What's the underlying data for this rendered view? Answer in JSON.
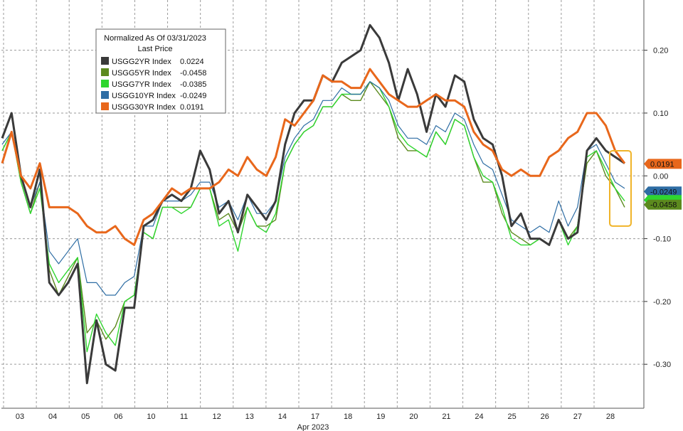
{
  "chart_data": {
    "type": "line",
    "x_label": "Apr 2023",
    "x_ticks": [
      "03",
      "04",
      "05",
      "06",
      "10",
      "11",
      "12",
      "13",
      "14",
      "17",
      "18",
      "19",
      "20",
      "21",
      "24",
      "25",
      "26",
      "27",
      "28"
    ],
    "y_ticks": [
      0.2,
      0.1,
      0.0,
      -0.1,
      -0.2,
      -0.3
    ],
    "ylim": [
      -0.37,
      0.28
    ],
    "grid": true,
    "legend": {
      "position": "top-left",
      "title_line1": "Normalized As Of 03/31/2023",
      "title_line2": "Last Price"
    },
    "series": [
      {
        "name": "USGG2YR Index",
        "last": "0.0224",
        "color": "#3a3a3a",
        "values": [
          0.06,
          0.1,
          0.0,
          -0.05,
          0.01,
          -0.17,
          -0.19,
          -0.17,
          -0.14,
          -0.33,
          -0.23,
          -0.3,
          -0.31,
          -0.21,
          -0.21,
          -0.08,
          -0.07,
          -0.04,
          -0.03,
          -0.04,
          -0.02,
          0.04,
          0.01,
          -0.06,
          -0.04,
          -0.09,
          -0.03,
          -0.05,
          -0.07,
          -0.04,
          0.05,
          0.1,
          0.12,
          0.12,
          0.16,
          0.15,
          0.18,
          0.19,
          0.2,
          0.24,
          0.22,
          0.18,
          0.12,
          0.17,
          0.13,
          0.07,
          0.13,
          0.11,
          0.16,
          0.15,
          0.09,
          0.06,
          0.05,
          0.0,
          -0.08,
          -0.06,
          -0.1,
          -0.1,
          -0.11,
          -0.07,
          -0.1,
          -0.09,
          0.04,
          0.06,
          0.04,
          0.03,
          0.02
        ]
      },
      {
        "name": "USGG5YR Index",
        "last": "-0.0458",
        "color": "#5c8a1e",
        "values": [
          0.04,
          0.07,
          -0.01,
          -0.06,
          -0.01,
          -0.15,
          -0.19,
          -0.16,
          -0.13,
          -0.25,
          -0.23,
          -0.26,
          -0.24,
          -0.2,
          -0.19,
          -0.09,
          -0.1,
          -0.05,
          -0.05,
          -0.05,
          -0.05,
          -0.02,
          -0.02,
          -0.07,
          -0.06,
          -0.09,
          -0.05,
          -0.08,
          -0.08,
          -0.07,
          0.02,
          0.05,
          0.07,
          0.08,
          0.11,
          0.11,
          0.13,
          0.12,
          0.12,
          0.15,
          0.13,
          0.11,
          0.06,
          0.04,
          0.04,
          0.03,
          0.07,
          0.05,
          0.09,
          0.08,
          0.03,
          -0.01,
          -0.01,
          -0.06,
          -0.09,
          -0.1,
          -0.11,
          -0.1,
          -0.11,
          -0.07,
          -0.1,
          -0.08,
          0.02,
          0.04,
          0.0,
          -0.02,
          -0.05
        ]
      },
      {
        "name": "USGG7YR Index",
        "last": "-0.0385",
        "color": "#2fd62f",
        "values": [
          0.04,
          0.07,
          -0.01,
          -0.06,
          -0.02,
          -0.14,
          -0.17,
          -0.15,
          -0.13,
          -0.28,
          -0.22,
          -0.25,
          -0.27,
          -0.2,
          -0.19,
          -0.09,
          -0.1,
          -0.05,
          -0.05,
          -0.06,
          -0.05,
          -0.02,
          -0.02,
          -0.08,
          -0.07,
          -0.12,
          -0.05,
          -0.08,
          -0.09,
          -0.06,
          0.02,
          0.05,
          0.07,
          0.08,
          0.11,
          0.11,
          0.13,
          0.13,
          0.13,
          0.15,
          0.14,
          0.11,
          0.07,
          0.05,
          0.04,
          0.03,
          0.07,
          0.05,
          0.09,
          0.08,
          0.03,
          0.0,
          -0.01,
          -0.05,
          -0.1,
          -0.11,
          -0.11,
          -0.1,
          -0.11,
          -0.07,
          -0.11,
          -0.08,
          0.03,
          0.04,
          0.01,
          -0.02,
          -0.04
        ]
      },
      {
        "name": "USGG10YR Index",
        "last": "-0.0249",
        "color": "#2e6da4",
        "values": [
          0.05,
          0.07,
          0.0,
          -0.05,
          -0.01,
          -0.12,
          -0.14,
          -0.12,
          -0.1,
          -0.17,
          -0.17,
          -0.19,
          -0.19,
          -0.17,
          -0.16,
          -0.08,
          -0.08,
          -0.04,
          -0.04,
          -0.04,
          -0.03,
          -0.01,
          -0.01,
          -0.05,
          -0.04,
          -0.07,
          -0.03,
          -0.06,
          -0.06,
          -0.04,
          0.03,
          0.06,
          0.08,
          0.09,
          0.12,
          0.12,
          0.14,
          0.13,
          0.13,
          0.15,
          0.14,
          0.12,
          0.08,
          0.06,
          0.06,
          0.05,
          0.08,
          0.07,
          0.1,
          0.09,
          0.05,
          0.02,
          0.01,
          -0.03,
          -0.07,
          -0.08,
          -0.09,
          -0.08,
          -0.09,
          -0.04,
          -0.08,
          -0.05,
          0.04,
          0.05,
          0.02,
          -0.01,
          -0.02
        ]
      },
      {
        "name": "USGG30YR Index",
        "last": "0.0191",
        "color": "#e8671b",
        "values": [
          0.02,
          0.07,
          0.0,
          -0.02,
          0.02,
          -0.05,
          -0.05,
          -0.05,
          -0.06,
          -0.08,
          -0.09,
          -0.09,
          -0.08,
          -0.1,
          -0.11,
          -0.07,
          -0.06,
          -0.04,
          -0.02,
          -0.03,
          -0.02,
          -0.02,
          -0.02,
          -0.01,
          0.01,
          0.0,
          0.03,
          0.01,
          0.0,
          0.03,
          0.09,
          0.08,
          0.1,
          0.12,
          0.16,
          0.15,
          0.15,
          0.14,
          0.14,
          0.17,
          0.15,
          0.13,
          0.12,
          0.11,
          0.11,
          0.12,
          0.13,
          0.12,
          0.12,
          0.11,
          0.07,
          0.05,
          0.04,
          0.01,
          0.0,
          0.01,
          0.0,
          0.0,
          0.03,
          0.04,
          0.06,
          0.07,
          0.1,
          0.1,
          0.08,
          0.04,
          0.02
        ]
      }
    ],
    "right_tags": [
      {
        "series": "USGG30YR Index",
        "text": "0.0191",
        "color": "#e8671b",
        "value": 0.0191
      },
      {
        "series": "USGG10YR Index",
        "text": "-0.0249",
        "color": "#2e6da4",
        "value": -0.0249
      },
      {
        "series": "USGG7YR Index",
        "text": "",
        "color": "#2fd62f",
        "value": -0.0385
      },
      {
        "series": "USGG5YR Index",
        "text": "-0.0458",
        "color": "#5c8a1e",
        "value": -0.0458
      }
    ],
    "highlight_box_color": "#f0b429"
  }
}
